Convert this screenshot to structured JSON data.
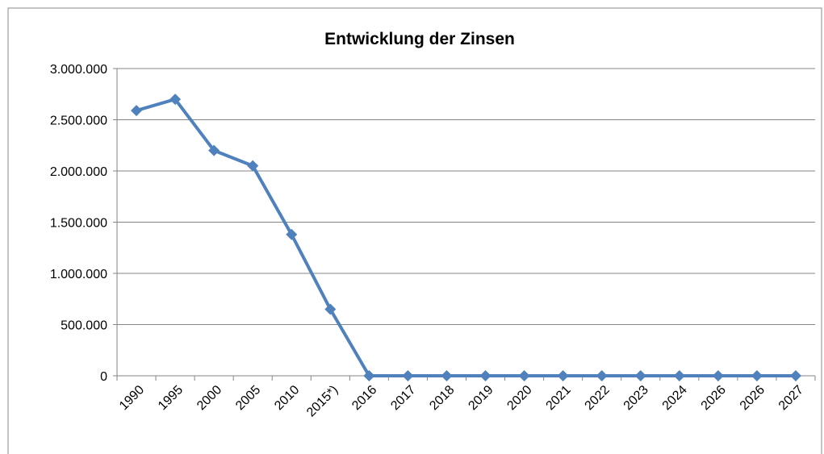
{
  "chart_data": {
    "type": "line",
    "title": "Entwicklung der Zinsen",
    "categories": [
      "1990",
      "1995",
      "2000",
      "2005",
      "2010",
      "2015*)",
      "2016",
      "2017",
      "2018",
      "2019",
      "2020",
      "2021",
      "2022",
      "2023",
      "2024",
      "2026",
      "2026",
      "2027"
    ],
    "series": [
      {
        "name": "Zinsen",
        "color": "#4f81bd",
        "values": [
          2590000,
          2700000,
          2200000,
          2050000,
          1380000,
          650000,
          0,
          0,
          0,
          0,
          0,
          0,
          0,
          0,
          0,
          0,
          0,
          0
        ]
      }
    ],
    "ylim": [
      0,
      3000000
    ],
    "yticks": [
      0,
      {
        "value": 500000,
        "label": "500.000"
      },
      {
        "value": 1000000,
        "label": "1.000.000"
      },
      {
        "value": 1500000,
        "label": "1.500.000"
      },
      {
        "value": 2000000,
        "label": "2.000.000"
      },
      {
        "value": 2500000,
        "label": "2.500.000"
      },
      {
        "value": 3000000,
        "label": "3.000.000"
      }
    ],
    "grid": true
  }
}
